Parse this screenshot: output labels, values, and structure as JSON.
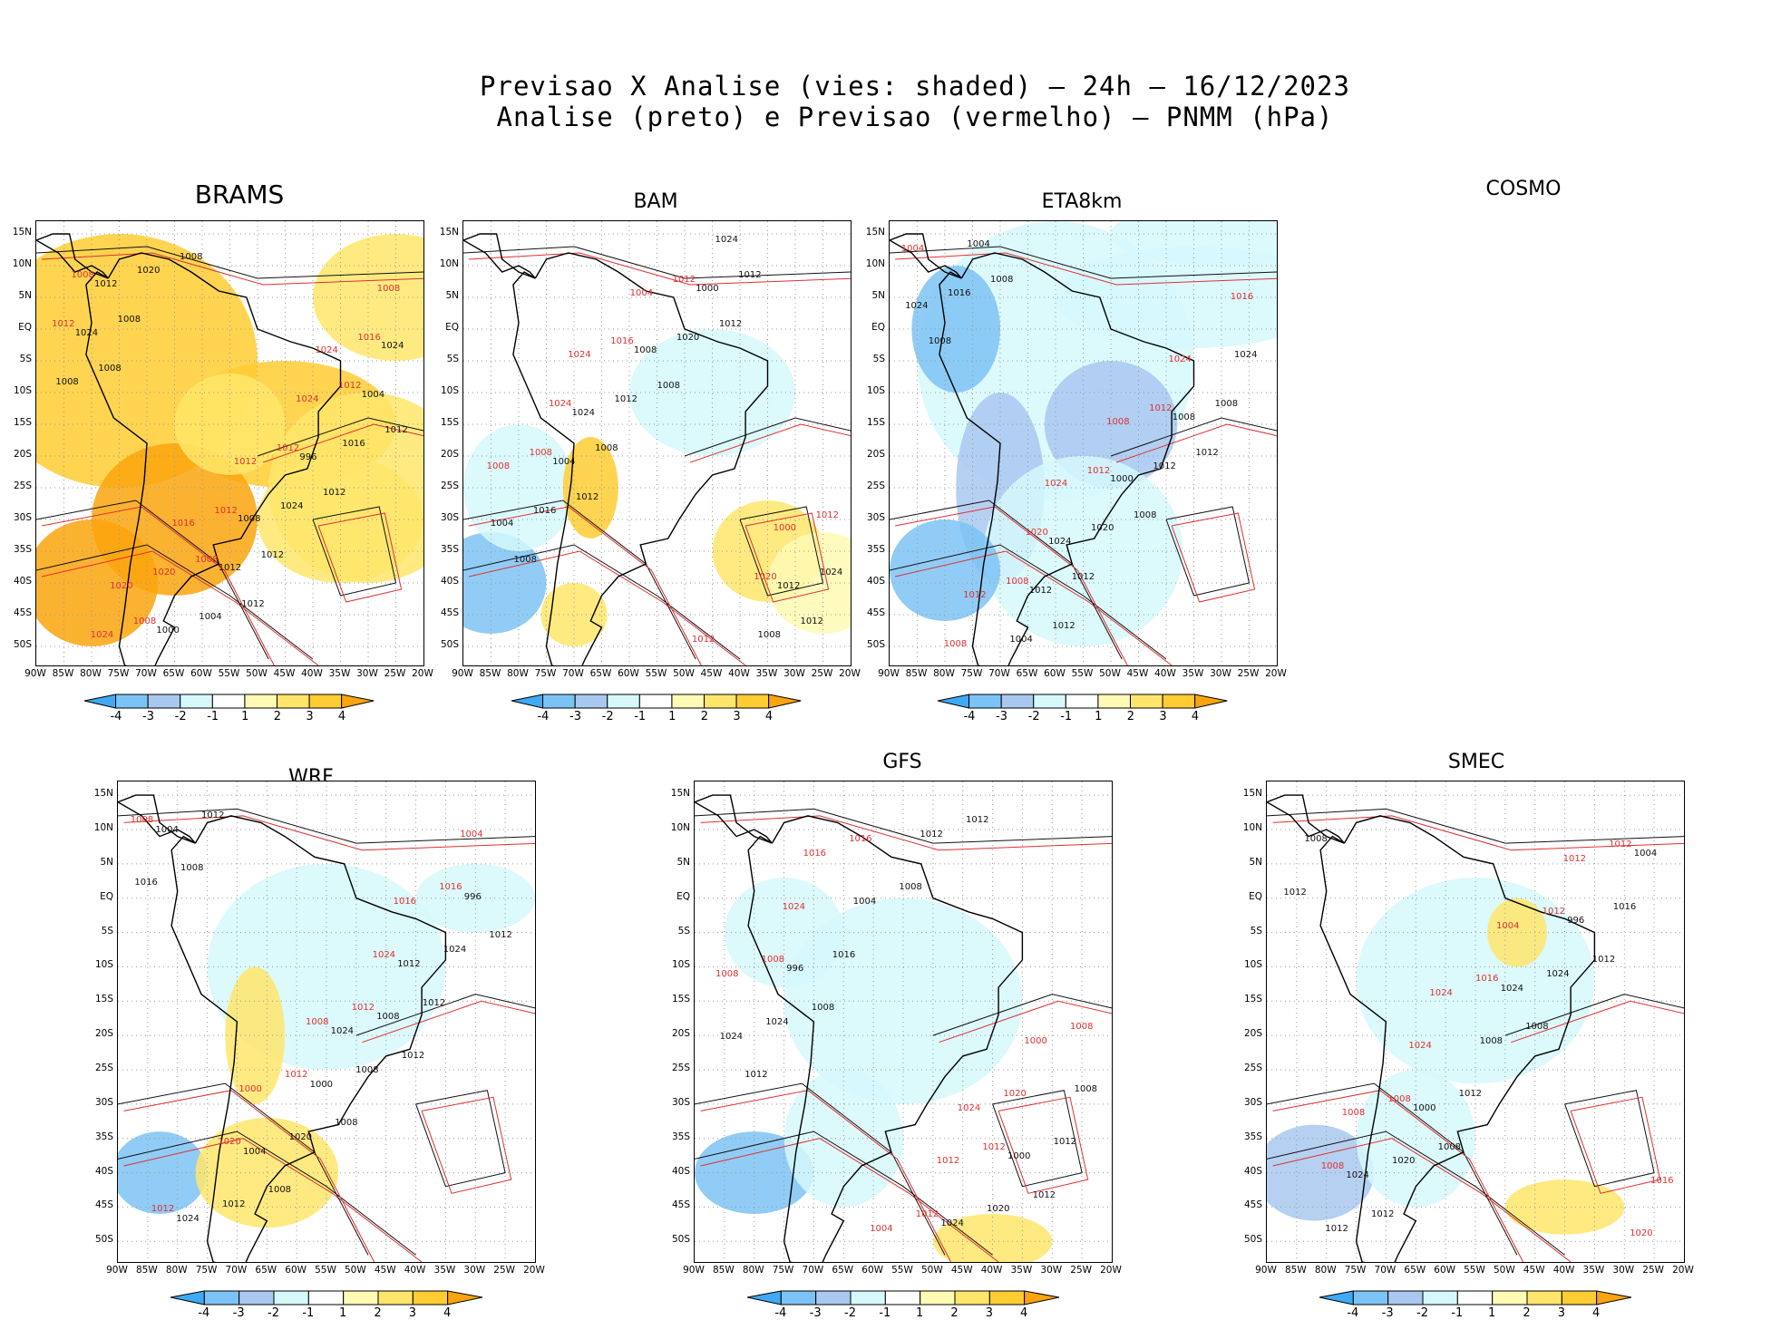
{
  "title": {
    "line1": "Previsao X Analise (vies: shaded) – 24h – 16/12/2023",
    "line2": "Analise (preto) e Previsao (vermelho) – PNMM (hPa)"
  },
  "colorbar": {
    "labels": [
      "-4",
      "-3",
      "-2",
      "-1",
      "1",
      "2",
      "3",
      "4"
    ],
    "colors": [
      "#3fa9f5",
      "#7cc3f5",
      "#a9c8f0",
      "#d6f8fb",
      "#ffffff",
      "#fffab4",
      "#ffe66b",
      "#ffcc33",
      "#fba40d"
    ]
  },
  "axes": {
    "lat_labels": [
      "15N",
      "10N",
      "5N",
      "EQ",
      "5S",
      "10S",
      "15S",
      "20S",
      "25S",
      "30S",
      "35S",
      "40S",
      "45S",
      "50S"
    ],
    "lon_labels": [
      "90W",
      "85W",
      "80W",
      "75W",
      "70W",
      "65W",
      "60W",
      "55W",
      "50W",
      "45W",
      "40W",
      "35W",
      "30W",
      "25W",
      "20W"
    ]
  },
  "panels": [
    {
      "name": "BRAMS",
      "labels_black": [
        "1008",
        "1012",
        "1012",
        "1008",
        "1012",
        "1008",
        "1012",
        "1008",
        "1004",
        "1016",
        "1020",
        "1024",
        "1024",
        "1012",
        "1004",
        "1000",
        "996",
        "1012",
        "1008",
        "1024"
      ],
      "labels_red": [
        "1012",
        "1008",
        "1012",
        "1008",
        "1012",
        "1008",
        "1012",
        "1016",
        "1020",
        "1024",
        "1024",
        "1012",
        "1008",
        "1016",
        "1024",
        "1020"
      ]
    },
    {
      "name": "BAM",
      "labels_black": [
        "1012",
        "1012",
        "1008",
        "1008",
        "1012",
        "1008",
        "1012",
        "1016",
        "1020",
        "1024",
        "1012",
        "1008",
        "1004",
        "1000",
        "1004",
        "1008",
        "1012",
        "1024",
        "1024"
      ],
      "labels_red": [
        "1008",
        "1012",
        "1012",
        "1016",
        "1020",
        "1024",
        "1012",
        "1008",
        "1004",
        "1000",
        "1024"
      ]
    },
    {
      "name": "ETA8km",
      "labels_black": [
        "1012",
        "1012",
        "1008",
        "1008",
        "1008",
        "1012",
        "1008",
        "1004",
        "1012",
        "1016",
        "1020",
        "1024",
        "1012",
        "1008",
        "1004",
        "1000",
        "1024",
        "1024"
      ],
      "labels_red": [
        "1008",
        "1012",
        "1008",
        "1012",
        "1016",
        "1020",
        "1024",
        "1012",
        "1008",
        "1004",
        "1024"
      ]
    },
    {
      "name": "COSMO",
      "labels_black": [],
      "labels_red": []
    },
    {
      "name": "WRF",
      "labels_black": [
        "1012",
        "1008",
        "1008",
        "1012",
        "1008",
        "1012",
        "1012",
        "1008",
        "1016",
        "1020",
        "1024",
        "1012",
        "1008",
        "1004",
        "1000",
        "996",
        "1004",
        "1012",
        "1024",
        "1024"
      ],
      "labels_red": [
        "1012",
        "1008",
        "1012",
        "1016",
        "1020",
        "1024",
        "1012",
        "1008",
        "1004",
        "1000",
        "1016"
      ]
    },
    {
      "name": "GFS",
      "labels_black": [
        "1012",
        "1008",
        "1012",
        "1012",
        "1008",
        "1012",
        "1016",
        "1020",
        "1024",
        "1012",
        "1008",
        "1004",
        "1000",
        "996",
        "1024",
        "1024"
      ],
      "labels_red": [
        "1012",
        "1008",
        "1012",
        "1008",
        "1016",
        "1020",
        "1024",
        "1012",
        "1008",
        "1004",
        "1000",
        "1016",
        "1024"
      ]
    },
    {
      "name": "SMEC",
      "labels_black": [
        "1012",
        "1008",
        "1012",
        "1012",
        "1008",
        "1008",
        "1012",
        "1016",
        "1020",
        "1024",
        "1012",
        "1008",
        "1004",
        "1000",
        "996",
        "1024",
        "1024"
      ],
      "labels_red": [
        "1012",
        "1008",
        "1012",
        "1008",
        "1016",
        "1020",
        "1024",
        "1012",
        "1008",
        "1004",
        "1016",
        "1024"
      ]
    }
  ]
}
